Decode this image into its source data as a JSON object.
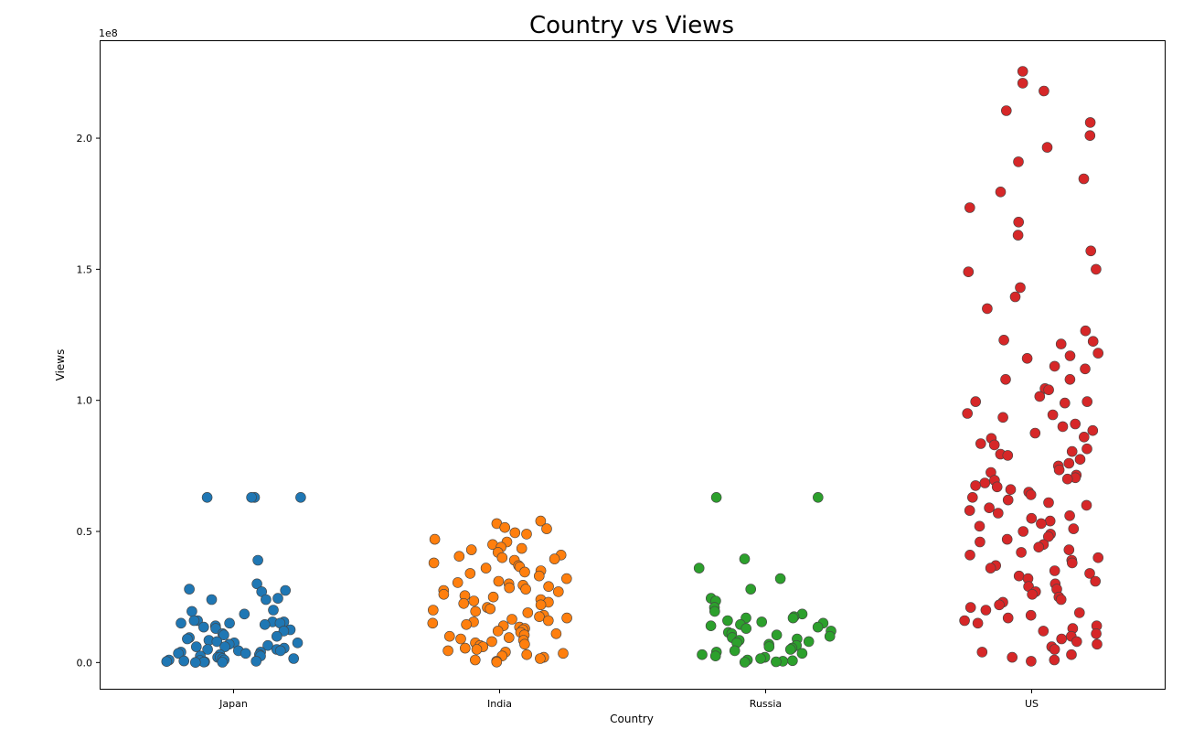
{
  "chart_data": {
    "type": "scatter",
    "title": "Country vs Views",
    "xlabel": "Country",
    "ylabel": "Views",
    "y_offset_label": "1e8",
    "y_scale": 100000000,
    "ylim": [
      -10000000,
      237000000
    ],
    "y_ticks": [
      0,
      50000000,
      100000000,
      150000000,
      200000000
    ],
    "y_tick_labels": [
      "0.0",
      "0.5",
      "1.0",
      "1.5",
      "2.0"
    ],
    "categories": [
      "Japan",
      "India",
      "Russia",
      "US"
    ],
    "grid": false,
    "series": [
      {
        "name": "Japan",
        "color": "#1f77b4",
        "values": [
          63000000,
          63000000,
          63000000,
          63000000,
          39000000,
          30000000,
          28000000,
          27500000,
          27000000,
          24500000,
          24000000,
          24000000,
          20000000,
          19500000,
          18500000,
          16000000,
          16000000,
          15500000,
          15500000,
          15000000,
          15000000,
          15000000,
          14500000,
          14000000,
          13500000,
          13000000,
          12500000,
          12000000,
          11000000,
          10500000,
          10000000,
          9500000,
          9000000,
          8500000,
          8000000,
          7500000,
          7500000,
          7000000,
          6500000,
          6000000,
          6000000,
          5500000,
          5000000,
          5000000,
          4500000,
          4500000,
          4000000,
          4000000,
          3500000,
          3500000,
          3000000,
          3000000,
          2500000,
          2500000,
          2000000,
          2000000,
          1500000,
          1500000,
          1000000,
          1000000,
          800000,
          600000,
          500000,
          400000,
          300000,
          200000,
          100000,
          50000
        ]
      },
      {
        "name": "India",
        "color": "#ff7f0e",
        "values": [
          54000000,
          53000000,
          51500000,
          51000000,
          49500000,
          49000000,
          47000000,
          46000000,
          45000000,
          44000000,
          43500000,
          43000000,
          42000000,
          41000000,
          40500000,
          40000000,
          39500000,
          39000000,
          38000000,
          37000000,
          36500000,
          36000000,
          35000000,
          34500000,
          34000000,
          33000000,
          32000000,
          31000000,
          30500000,
          30000000,
          29500000,
          29000000,
          28500000,
          28000000,
          27500000,
          27000000,
          26000000,
          25500000,
          25000000,
          24000000,
          23500000,
          23000000,
          22500000,
          22000000,
          21000000,
          20500000,
          20000000,
          19500000,
          19000000,
          18000000,
          17500000,
          17000000,
          16500000,
          16000000,
          15500000,
          15000000,
          14500000,
          14000000,
          13500000,
          13000000,
          12500000,
          12000000,
          11500000,
          11000000,
          10500000,
          10000000,
          9500000,
          9000000,
          8500000,
          8000000,
          7500000,
          7000000,
          6500000,
          6000000,
          5500000,
          5000000,
          4500000,
          4000000,
          3500000,
          3000000,
          2500000,
          2000000,
          1500000,
          1000000,
          500000,
          200000
        ]
      },
      {
        "name": "Russia",
        "color": "#2ca02c",
        "values": [
          63000000,
          63000000,
          39500000,
          36000000,
          32000000,
          28000000,
          24500000,
          23500000,
          21000000,
          19500000,
          18500000,
          17500000,
          17000000,
          17000000,
          16000000,
          15500000,
          15000000,
          14500000,
          14000000,
          13500000,
          13000000,
          12000000,
          11500000,
          11000000,
          10500000,
          10000000,
          9500000,
          9000000,
          8500000,
          8000000,
          7500000,
          7000000,
          6500000,
          6000000,
          5500000,
          5000000,
          4500000,
          4000000,
          3500000,
          3000000,
          2500000,
          2000000,
          1500000,
          1000000,
          700000,
          500000,
          300000,
          100000
        ]
      },
      {
        "name": "US",
        "color": "#d62728",
        "values": [
          225500000,
          221000000,
          218000000,
          210500000,
          206000000,
          201000000,
          196500000,
          191000000,
          184500000,
          179500000,
          173500000,
          168000000,
          163000000,
          157000000,
          150000000,
          149000000,
          143000000,
          139500000,
          135000000,
          126500000,
          123000000,
          122500000,
          121500000,
          118000000,
          117000000,
          116000000,
          113000000,
          112000000,
          108000000,
          108000000,
          104500000,
          104000000,
          101500000,
          99500000,
          99500000,
          99000000,
          95000000,
          94500000,
          93500000,
          91000000,
          90000000,
          88500000,
          87500000,
          86000000,
          85500000,
          83500000,
          83000000,
          81500000,
          80500000,
          79500000,
          79000000,
          77500000,
          76000000,
          75000000,
          73500000,
          72500000,
          71500000,
          70500000,
          70000000,
          69500000,
          68500000,
          67500000,
          67000000,
          66000000,
          65000000,
          64000000,
          63000000,
          62000000,
          61000000,
          60000000,
          59000000,
          58000000,
          57000000,
          56000000,
          55000000,
          54000000,
          53000000,
          52000000,
          51000000,
          50000000,
          49000000,
          48000000,
          47000000,
          46000000,
          45000000,
          44000000,
          43000000,
          42000000,
          41000000,
          40000000,
          39000000,
          38000000,
          37000000,
          36000000,
          35000000,
          34000000,
          33000000,
          32000000,
          31000000,
          30000000,
          29000000,
          28000000,
          27000000,
          26000000,
          25000000,
          24000000,
          23000000,
          22000000,
          21000000,
          20000000,
          19000000,
          18000000,
          17000000,
          16000000,
          15000000,
          14000000,
          13000000,
          12000000,
          11000000,
          10000000,
          9000000,
          8000000,
          7000000,
          6000000,
          5000000,
          4000000,
          3000000,
          2000000,
          1000000,
          500000
        ]
      }
    ]
  }
}
